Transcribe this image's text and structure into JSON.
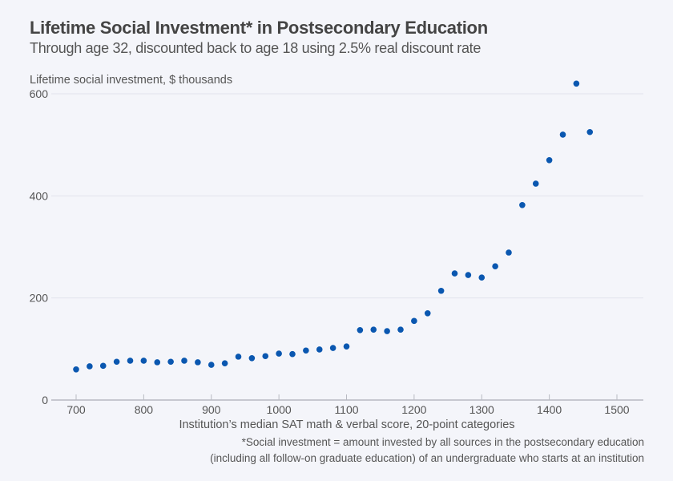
{
  "chart_data": {
    "type": "scatter",
    "title": "Lifetime Social Investment* in Postsecondary Education",
    "subtitle": "Through age 32, discounted back to age 18 using 2.5% real discount rate",
    "ylabel": "Lifetime social investment, $ thousands",
    "xlabel": "Institution’s median SAT math & verbal score, 20-point categories",
    "footnote": [
      "*Social investment = amount invested by all sources in the postsecondary education",
      "(including all follow-on graduate education) of an undergraduate who starts at an institution"
    ],
    "xlim": [
      680,
      1540
    ],
    "ylim": [
      0,
      600
    ],
    "xticks": [
      700,
      800,
      900,
      1000,
      1100,
      1200,
      1300,
      1400,
      1500
    ],
    "yticks": [
      0,
      200,
      400,
      600
    ],
    "grid": true,
    "color": "#0a57b0",
    "x": [
      700,
      720,
      740,
      760,
      780,
      800,
      820,
      840,
      860,
      880,
      900,
      920,
      940,
      960,
      980,
      1000,
      1020,
      1040,
      1060,
      1080,
      1100,
      1120,
      1140,
      1160,
      1180,
      1200,
      1220,
      1240,
      1260,
      1280,
      1300,
      1320,
      1340,
      1360,
      1380,
      1400,
      1420,
      1440,
      1460
    ],
    "y": [
      60,
      66,
      67,
      75,
      77,
      77,
      74,
      75,
      77,
      74,
      69,
      72,
      85,
      82,
      86,
      91,
      90,
      97,
      99,
      102,
      105,
      137,
      138,
      135,
      138,
      155,
      170,
      214,
      248,
      245,
      240,
      262,
      289,
      382,
      424,
      470,
      520,
      620,
      525
    ]
  }
}
